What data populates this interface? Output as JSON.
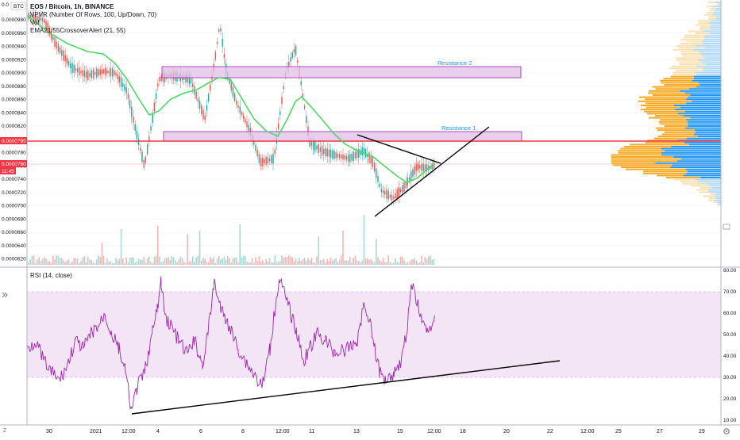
{
  "legend": {
    "title": "EOS / Bitcoin, 1h, BINANCE",
    "vpvr": "VPVR (Number Of Rows, 100, Up/Down, 70)",
    "vol": "Vol",
    "ema": "EMA21/55CrossoverAlert (21, 55)"
  },
  "rsi_legend": "RSI (14, close)",
  "price_axis": {
    "unit": "BTC",
    "top_label": "0.0",
    "labels": [
      "0.0000980",
      "0.0000960",
      "0.0000940",
      "0.0000920",
      "0.0000900",
      "0.0000880",
      "0.0000860",
      "0.0000840",
      "0.0000820",
      "0.0000800",
      "0.0000780",
      "0.0000760",
      "0.0000740",
      "0.0000720",
      "0.0000700",
      "0.0000680",
      "0.0000660",
      "0.0000640",
      "0.0000620"
    ]
  },
  "badges": {
    "red_price": "0.0000795",
    "current_price": "0.0000760",
    "countdown": "11:45"
  },
  "rsi_axis": {
    "labels": [
      "80.00",
      "70.00",
      "60.00",
      "50.00",
      "40.00",
      "30.00",
      "20.00",
      "10.00"
    ]
  },
  "time_axis": {
    "labels": [
      "30",
      "2021",
      "12:00",
      "4",
      "6",
      "8",
      "12:00",
      "11",
      "13",
      "15",
      "12:00",
      "18",
      "20",
      "22",
      "12:00",
      "25",
      "27",
      "29"
    ]
  },
  "annotations": {
    "resistance1": "Resistance 1",
    "resistance2": "Resistance 2"
  },
  "icons": {
    "zoom": "Z",
    "settings": "gear-icon",
    "goto_realtime": "double-chevron-icon"
  },
  "colors": {
    "resistance_fill": "#e1bee7",
    "resistance_border": "#9c27b0",
    "red_line": "#f23645",
    "ema": "#4cd964",
    "candle_up": "#26a69a",
    "candle_down": "#ef5350",
    "rsi_line": "#9c27b0",
    "rsi_band": "#f3e5f5",
    "vpvr_up": "#f6a821",
    "vpvr_down": "#2196f3",
    "annotation_text": "#2196f3"
  }
}
